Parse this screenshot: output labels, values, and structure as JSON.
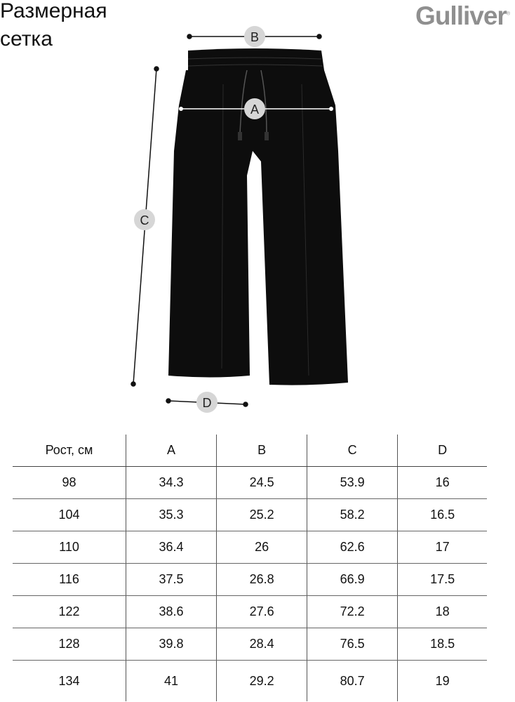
{
  "title": "Размерная сетка",
  "title_lines": [
    "Размерная",
    "сетка"
  ],
  "logo": "Gulliver",
  "markers": {
    "a": "A",
    "b": "B",
    "c": "C",
    "d": "D"
  },
  "table": {
    "headers": [
      "Рост, см",
      "A",
      "B",
      "C",
      "D"
    ],
    "rows": [
      [
        "98",
        "34.3",
        "24.5",
        "53.9",
        "16"
      ],
      [
        "104",
        "35.3",
        "25.2",
        "58.2",
        "16.5"
      ],
      [
        "110",
        "36.4",
        "26",
        "62.6",
        "17"
      ],
      [
        "116",
        "37.5",
        "26.8",
        "66.9",
        "17.5"
      ],
      [
        "122",
        "38.6",
        "27.6",
        "72.2",
        "18"
      ],
      [
        "128",
        "39.8",
        "28.4",
        "76.5",
        "18.5"
      ],
      [
        "134",
        "41",
        "29.2",
        "80.7",
        "19"
      ]
    ]
  },
  "colors": {
    "garment": "#0d0d0d",
    "marker": "#d6d6d6",
    "logo": "#8f8f8f"
  }
}
